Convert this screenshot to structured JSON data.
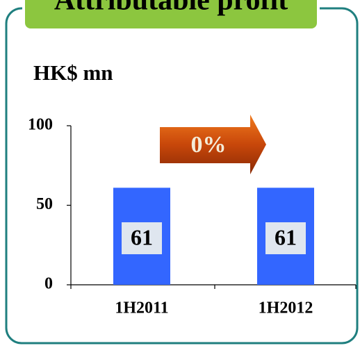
{
  "chart_data": {
    "type": "bar",
    "title": "Attributable profit",
    "y_label": "HK$ mn",
    "annotation": "0%",
    "categories": [
      "1H2011",
      "1H2012"
    ],
    "values": [
      61,
      61
    ],
    "color": "#3366ff",
    "ylim": [
      0,
      100
    ],
    "yticks": [
      0,
      50,
      100
    ]
  }
}
